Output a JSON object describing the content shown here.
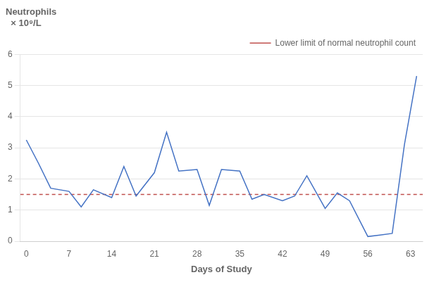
{
  "chart_data": {
    "type": "line",
    "xlabel": "Days of Study",
    "ylabel": [
      "Neutrophils",
      "  × 10⁹/L"
    ],
    "x": [
      0,
      2,
      4,
      7,
      9,
      11,
      14,
      16,
      18,
      21,
      23,
      25,
      28,
      30,
      32,
      35,
      37,
      39,
      42,
      44,
      46,
      49,
      51,
      53,
      56,
      58,
      60,
      62,
      64
    ],
    "series": [
      {
        "values": [
          3.25,
          2.5,
          1.7,
          1.6,
          1.1,
          1.65,
          1.4,
          2.4,
          1.45,
          2.2,
          3.5,
          2.25,
          2.3,
          1.15,
          2.3,
          2.25,
          1.35,
          1.5,
          1.3,
          1.45,
          2.1,
          1.05,
          1.55,
          1.3,
          0.15,
          0.2,
          0.25,
          3.1,
          5.3
        ],
        "color": "#4472C4"
      }
    ],
    "hlines": [
      {
        "value": 1.5,
        "name": "Lower limit of normal neutrophil count",
        "color": "#C0504D",
        "line_style": "dashed"
      }
    ],
    "xlim": [
      -1,
      65
    ],
    "xticks": [
      0,
      7,
      14,
      21,
      28,
      35,
      42,
      49,
      56,
      63
    ],
    "ylim": [
      0,
      6
    ],
    "yticks": [
      0,
      1,
      2,
      3,
      4,
      5,
      6
    ],
    "grid": "y",
    "legend": "top right"
  }
}
